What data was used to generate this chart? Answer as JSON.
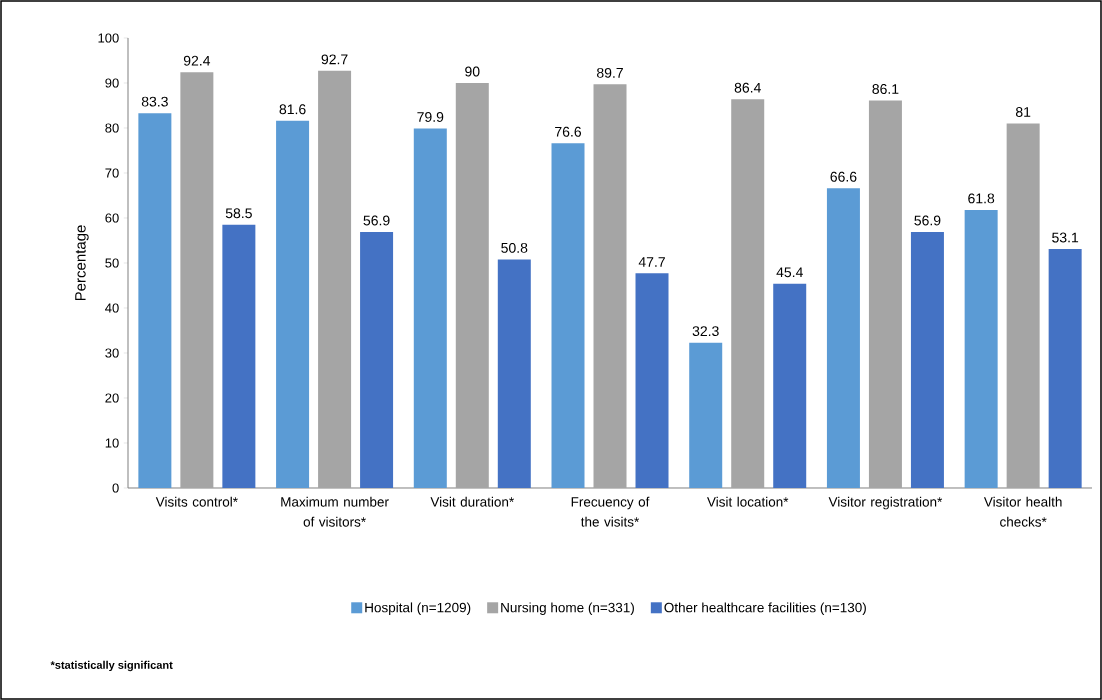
{
  "chart_data": {
    "type": "bar",
    "ylabel": "Percentage",
    "categories": [
      "Visits control*",
      "Maximum number of visitors*",
      "Visit duration*",
      "Frecuency of the visits*",
      "Visit location*",
      "Visitor registration*",
      "Visitor health checks*"
    ],
    "series": [
      {
        "name": "Hospital (n=1209)",
        "color": "#5b9bd5",
        "values": [
          83.3,
          81.6,
          79.9,
          76.6,
          32.3,
          66.6,
          61.8
        ]
      },
      {
        "name": "Nursing home (n=331)",
        "color": "#a5a5a5",
        "values": [
          92.4,
          92.7,
          90,
          89.7,
          86.4,
          86.1,
          81
        ]
      },
      {
        "name": "Other healthcare facilities (n=130)",
        "color": "#4472c4",
        "values": [
          58.5,
          56.9,
          50.8,
          47.7,
          45.4,
          56.9,
          53.1
        ]
      }
    ],
    "ylim": [
      0,
      100
    ],
    "yticks": [
      0,
      10,
      20,
      30,
      40,
      50,
      60,
      70,
      80,
      90,
      100
    ],
    "data_labels": true,
    "grid": false,
    "legend": "bottom",
    "annotations": [
      "*statistically significant"
    ]
  }
}
